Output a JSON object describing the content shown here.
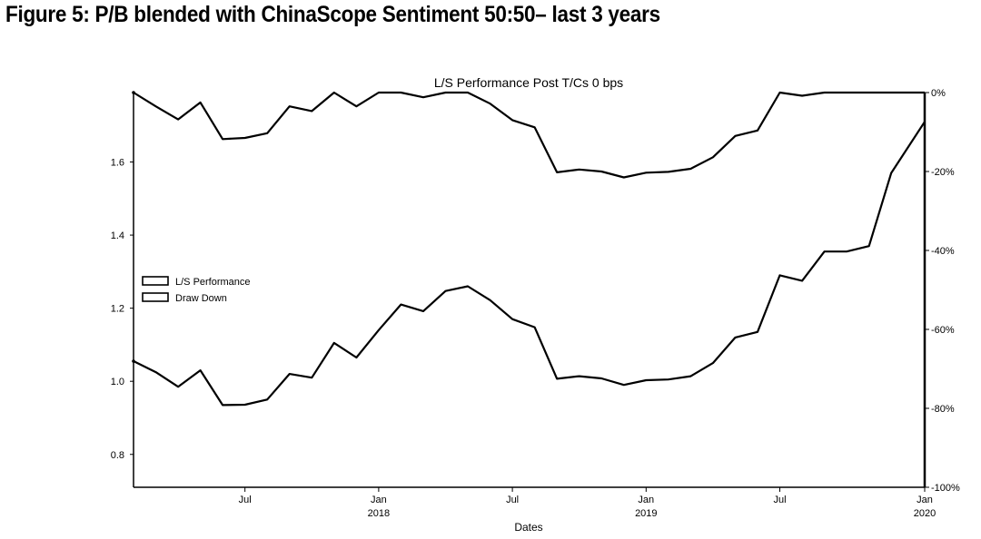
{
  "figure_title": "Figure 5: P/B blended with ChinaScope Sentiment 50:50– last 3 years",
  "chart_data": {
    "type": "line",
    "title": "L/S Performance Post T/Cs 0 bps",
    "xlabel": "Dates",
    "ylabel": "",
    "x_range": [
      0,
      35.5
    ],
    "x_ticks": [
      {
        "x": 5,
        "label": "Jul",
        "sublabel": ""
      },
      {
        "x": 11,
        "label": "Jan",
        "sublabel": "2018"
      },
      {
        "x": 17,
        "label": "Jul",
        "sublabel": ""
      },
      {
        "x": 23,
        "label": "Jan",
        "sublabel": "2019"
      },
      {
        "x": 29,
        "label": "Jul",
        "sublabel": ""
      },
      {
        "x": 35.5,
        "label": "Jan",
        "sublabel": "2020"
      }
    ],
    "y_left": {
      "range": [
        0.71,
        1.79
      ],
      "ticks": [
        {
          "v": 0.8,
          "label": "0.8"
        },
        {
          "v": 1.0,
          "label": "1.0"
        },
        {
          "v": 1.2,
          "label": "1.2"
        },
        {
          "v": 1.4,
          "label": "1.4"
        },
        {
          "v": 1.6,
          "label": "1.6"
        }
      ]
    },
    "y_right": {
      "range": [
        -100,
        0
      ],
      "ticks": [
        {
          "v": 0,
          "label": "0%"
        },
        {
          "v": -20,
          "label": "-20%"
        },
        {
          "v": -40,
          "label": "-40%"
        },
        {
          "v": -60,
          "label": "-60%"
        },
        {
          "v": -80,
          "label": "-80%"
        },
        {
          "v": -100,
          "label": "-100%"
        }
      ]
    },
    "legend": {
      "placement": "left-middle",
      "entries": [
        "L/S Performance",
        "Draw Down"
      ]
    },
    "series": [
      {
        "name": "L/S Performance",
        "axis": "left",
        "x": [
          0,
          1,
          2,
          3,
          4,
          5,
          6,
          7,
          8,
          9,
          10,
          11,
          12,
          13,
          14,
          15,
          16,
          17,
          18,
          19,
          20,
          21,
          22,
          23,
          24,
          25,
          26,
          27,
          28,
          29,
          30,
          31,
          32,
          33,
          34,
          35.5
        ],
        "values": [
          1.055,
          1.025,
          0.985,
          1.03,
          0.935,
          0.936,
          0.95,
          1.02,
          1.01,
          1.105,
          1.065,
          1.14,
          1.21,
          1.192,
          1.247,
          1.26,
          1.222,
          1.17,
          1.148,
          1.007,
          1.014,
          1.008,
          0.99,
          1.003,
          1.005,
          1.014,
          1.05,
          1.12,
          1.135,
          1.29,
          1.275,
          1.355,
          1.355,
          1.37,
          1.57,
          1.71
        ]
      },
      {
        "name": "Draw Down",
        "axis": "right",
        "x": [
          0,
          1,
          2,
          3,
          4,
          5,
          6,
          7,
          8,
          9,
          10,
          11,
          12,
          13,
          14,
          15,
          16,
          17,
          18,
          19,
          20,
          21,
          22,
          23,
          24,
          25,
          26,
          27,
          28,
          29,
          30,
          31,
          32,
          33,
          34,
          35.5
        ],
        "values": [
          0,
          -3.5,
          -6.8,
          -2.5,
          -11.8,
          -11.5,
          -10.3,
          -3.5,
          -4.7,
          0,
          -3.5,
          0,
          0,
          -1.2,
          0,
          0,
          -2.8,
          -7,
          -8.8,
          -20.2,
          -19.5,
          -20,
          -21.5,
          -20.3,
          -20.1,
          -19.3,
          -16.4,
          -11,
          -9.6,
          0,
          -0.8,
          0,
          0,
          0,
          0,
          0
        ]
      }
    ]
  }
}
